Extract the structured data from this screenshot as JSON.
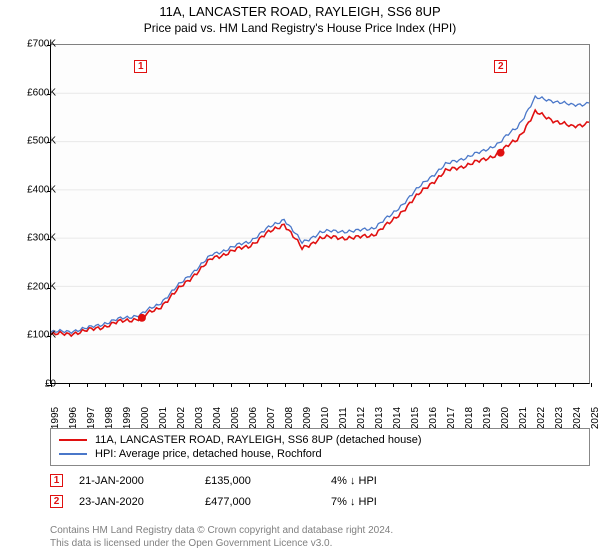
{
  "title": "11A, LANCASTER ROAD, RAYLEIGH, SS6 8UP",
  "subtitle": "Price paid vs. HM Land Registry's House Price Index (HPI)",
  "chart": {
    "type": "line",
    "ylim": [
      0,
      700000
    ],
    "ytick_step": 100000,
    "y_labels": [
      "£0",
      "£100K",
      "£200K",
      "£300K",
      "£400K",
      "£500K",
      "£600K",
      "£700K"
    ],
    "x_years": [
      1995,
      1996,
      1997,
      1998,
      1999,
      2000,
      2001,
      2002,
      2003,
      2004,
      2005,
      2006,
      2007,
      2008,
      2009,
      2010,
      2011,
      2012,
      2013,
      2014,
      2015,
      2016,
      2017,
      2018,
      2019,
      2020,
      2021,
      2022,
      2023,
      2024,
      2025
    ],
    "background_color": "#fdfdfd",
    "grid_color": "#e8e8e8",
    "series": [
      {
        "name": "price_paid",
        "label": "11A, LANCASTER ROAD, RAYLEIGH, SS6 8UP (detached house)",
        "color": "#e01010",
        "width": 1.6,
        "values_by_year": {
          "1995": 100000,
          "1996": 102000,
          "1997": 108000,
          "1998": 118000,
          "1999": 128000,
          "2000": 135000,
          "2001": 155000,
          "2002": 190000,
          "2003": 225000,
          "2004": 258000,
          "2005": 272000,
          "2006": 283000,
          "2007": 308000,
          "2008": 330000,
          "2009": 278000,
          "2010": 300000,
          "2011": 302000,
          "2012": 300000,
          "2013": 308000,
          "2014": 334000,
          "2015": 372000,
          "2016": 408000,
          "2017": 438000,
          "2018": 450000,
          "2019": 460000,
          "2020": 477000,
          "2021": 505000,
          "2022": 560000,
          "2023": 545000,
          "2024": 530000,
          "2025": 540000
        }
      },
      {
        "name": "hpi",
        "label": "HPI: Average price, detached house, Rochford",
        "color": "#4a77c9",
        "width": 1.3,
        "values_by_year": {
          "1995": 105000,
          "1996": 107000,
          "1997": 113000,
          "1998": 124000,
          "1999": 134000,
          "2000": 142000,
          "2001": 163000,
          "2002": 198000,
          "2003": 233000,
          "2004": 266000,
          "2005": 280000,
          "2006": 292000,
          "2007": 318000,
          "2008": 340000,
          "2009": 290000,
          "2010": 312000,
          "2011": 315000,
          "2012": 314000,
          "2013": 322000,
          "2014": 348000,
          "2015": 386000,
          "2016": 422000,
          "2017": 452000,
          "2018": 466000,
          "2019": 478000,
          "2020": 498000,
          "2021": 530000,
          "2022": 590000,
          "2023": 585000,
          "2024": 575000,
          "2025": 580000
        }
      }
    ],
    "markers": [
      {
        "id": "1",
        "year": 2000.07,
        "value": 135000,
        "color": "#e01010",
        "box_top": 16
      },
      {
        "id": "2",
        "year": 2020.07,
        "value": 477000,
        "color": "#e01010",
        "box_top": 16
      }
    ]
  },
  "legend": {
    "items": [
      {
        "color": "#e01010",
        "text": "11A, LANCASTER ROAD, RAYLEIGH, SS6 8UP (detached house)"
      },
      {
        "color": "#4a77c9",
        "text": "HPI: Average price, detached house, Rochford"
      }
    ]
  },
  "footer_rows": [
    {
      "id": "1",
      "color": "#e01010",
      "date": "21-JAN-2000",
      "price": "£135,000",
      "delta": "4% ↓ HPI"
    },
    {
      "id": "2",
      "color": "#e01010",
      "date": "23-JAN-2020",
      "price": "£477,000",
      "delta": "7% ↓ HPI"
    }
  ],
  "license": {
    "line1": "Contains HM Land Registry data © Crown copyright and database right 2024.",
    "line2": "This data is licensed under the Open Government Licence v3.0."
  }
}
